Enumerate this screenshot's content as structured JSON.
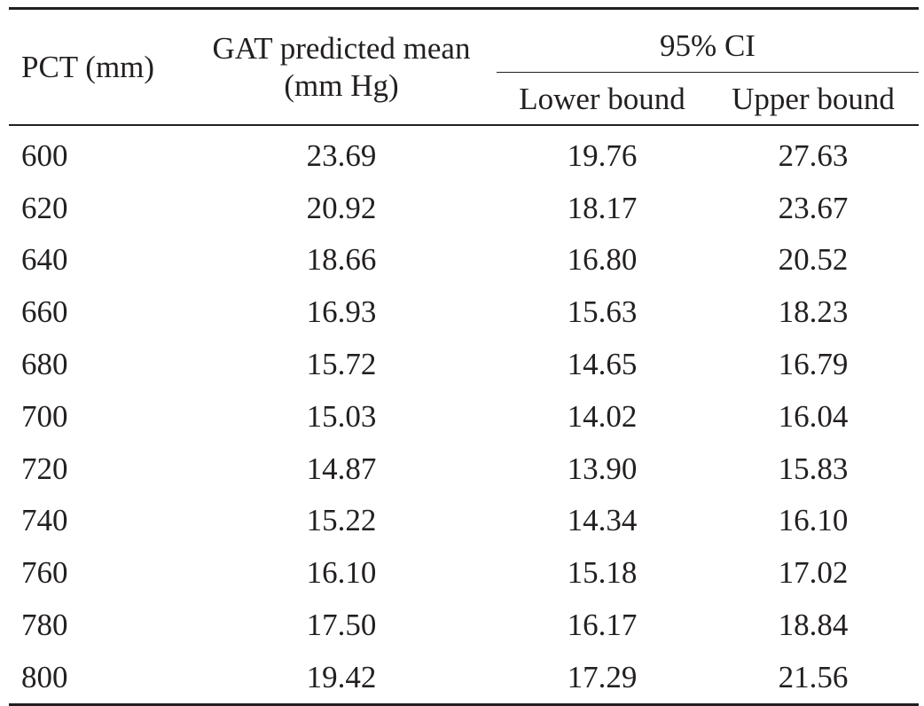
{
  "table": {
    "headers": {
      "pct": "PCT (mm)",
      "gat_line1": "GAT predicted mean",
      "gat_line2": "(mm Hg)",
      "ci_group": "95% CI",
      "lower": "Lower bound",
      "upper": "Upper bound"
    },
    "rows": [
      {
        "pct": "600",
        "gat": "23.69",
        "lower": "19.76",
        "upper": "27.63"
      },
      {
        "pct": "620",
        "gat": "20.92",
        "lower": "18.17",
        "upper": "23.67"
      },
      {
        "pct": "640",
        "gat": "18.66",
        "lower": "16.80",
        "upper": "20.52"
      },
      {
        "pct": "660",
        "gat": "16.93",
        "lower": "15.63",
        "upper": "18.23"
      },
      {
        "pct": "680",
        "gat": "15.72",
        "lower": "14.65",
        "upper": "16.79"
      },
      {
        "pct": "700",
        "gat": "15.03",
        "lower": "14.02",
        "upper": "16.04"
      },
      {
        "pct": "720",
        "gat": "14.87",
        "lower": "13.90",
        "upper": "15.83"
      },
      {
        "pct": "740",
        "gat": "15.22",
        "lower": "14.34",
        "upper": "16.10"
      },
      {
        "pct": "760",
        "gat": "16.10",
        "lower": "15.18",
        "upper": "17.02"
      },
      {
        "pct": "780",
        "gat": "17.50",
        "lower": "16.17",
        "upper": "18.84"
      },
      {
        "pct": "800",
        "gat": "19.42",
        "lower": "17.29",
        "upper": "21.56"
      }
    ]
  }
}
